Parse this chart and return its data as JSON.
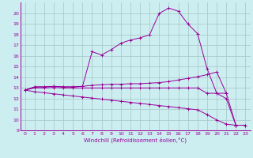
{
  "bg_color": "#cceef0",
  "grid_color": "#aacccc",
  "line_color": "#990099",
  "xlabel": "Windchill (Refroidissement éolien,°C)",
  "xlim": [
    -0.5,
    23.5
  ],
  "ylim": [
    9,
    21
  ],
  "yticks": [
    9,
    10,
    11,
    12,
    13,
    14,
    15,
    16,
    17,
    18,
    19,
    20
  ],
  "xticks": [
    0,
    1,
    2,
    3,
    4,
    5,
    6,
    7,
    8,
    9,
    10,
    11,
    12,
    13,
    14,
    15,
    16,
    17,
    18,
    19,
    20,
    21,
    22,
    23
  ],
  "curve1_x": [
    0,
    1,
    2,
    3,
    4,
    5,
    6,
    7,
    8,
    9,
    10,
    11,
    12,
    13,
    14,
    15,
    16,
    17,
    18,
    19,
    20,
    21,
    22,
    23
  ],
  "curve1_y": [
    12.8,
    13.1,
    13.1,
    13.15,
    13.1,
    13.1,
    13.15,
    16.4,
    16.1,
    16.6,
    17.2,
    17.5,
    17.7,
    18.0,
    20.0,
    20.5,
    20.2,
    19.0,
    18.1,
    14.8,
    12.5,
    12.0,
    9.5,
    9.5
  ],
  "curve2_x": [
    0,
    1,
    2,
    3,
    4,
    5,
    6,
    7,
    8,
    9,
    10,
    11,
    12,
    13,
    14,
    15,
    16,
    17,
    18,
    19,
    20,
    21
  ],
  "curve2_y": [
    12.8,
    13.1,
    13.1,
    13.15,
    13.1,
    13.1,
    13.15,
    13.25,
    13.3,
    13.35,
    13.35,
    13.4,
    13.4,
    13.45,
    13.5,
    13.6,
    13.75,
    13.9,
    14.05,
    14.25,
    14.5,
    12.5
  ],
  "curve3_x": [
    0,
    1,
    2,
    3,
    4,
    5,
    6,
    7,
    8,
    9,
    10,
    11,
    12,
    13,
    14,
    15,
    16,
    17,
    18,
    19,
    20,
    21,
    22
  ],
  "curve3_y": [
    12.8,
    13.0,
    13.0,
    13.05,
    13.0,
    13.0,
    13.0,
    13.0,
    13.0,
    13.0,
    13.0,
    13.0,
    13.0,
    13.0,
    13.0,
    13.0,
    13.0,
    13.0,
    13.0,
    12.5,
    12.5,
    12.5,
    9.5
  ],
  "curve4_x": [
    0,
    1,
    2,
    3,
    4,
    5,
    6,
    7,
    8,
    9,
    10,
    11,
    12,
    13,
    14,
    15,
    16,
    17,
    18,
    19,
    20,
    21,
    22,
    23
  ],
  "curve4_y": [
    12.8,
    12.65,
    12.55,
    12.45,
    12.35,
    12.25,
    12.15,
    12.05,
    11.95,
    11.85,
    11.75,
    11.65,
    11.55,
    11.45,
    11.35,
    11.25,
    11.15,
    11.05,
    10.95,
    10.5,
    10.0,
    9.6,
    9.5,
    9.5
  ]
}
